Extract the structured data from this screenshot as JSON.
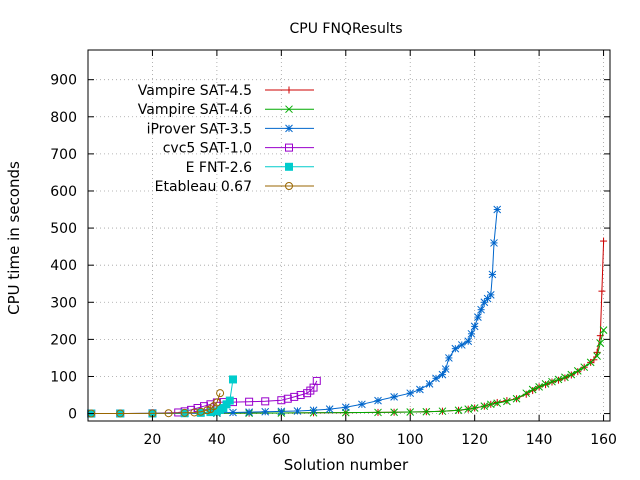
{
  "chart_data": {
    "type": "line",
    "title": "CPU FNQResults",
    "xlabel": "Solution number",
    "ylabel": "CPU time in seconds",
    "xlim": [
      0,
      162
    ],
    "ylim": [
      -20,
      980
    ],
    "xticks": [
      20,
      40,
      60,
      80,
      100,
      120,
      140,
      160
    ],
    "yticks": [
      0,
      100,
      200,
      300,
      400,
      500,
      600,
      700,
      800,
      900
    ],
    "grid": true,
    "legend_position": "top-left",
    "series": [
      {
        "name": "Vampire SAT-4.5",
        "color": "#cc0000",
        "marker": "plus",
        "points": [
          [
            1,
            0.1
          ],
          [
            10,
            0.2
          ],
          [
            20,
            0.3
          ],
          [
            30,
            0.5
          ],
          [
            40,
            0.8
          ],
          [
            50,
            1.2
          ],
          [
            60,
            1.6
          ],
          [
            70,
            2.1
          ],
          [
            80,
            2.6
          ],
          [
            90,
            3.1
          ],
          [
            95,
            3.6
          ],
          [
            100,
            4.2
          ],
          [
            105,
            5
          ],
          [
            110,
            6.5
          ],
          [
            115,
            9
          ],
          [
            118,
            12
          ],
          [
            120,
            15
          ],
          [
            123,
            20
          ],
          [
            125,
            25
          ],
          [
            127,
            30
          ],
          [
            130,
            35
          ],
          [
            133,
            40
          ],
          [
            136,
            52
          ],
          [
            138,
            62
          ],
          [
            140,
            72
          ],
          [
            142,
            78
          ],
          [
            144,
            85
          ],
          [
            146,
            90
          ],
          [
            148,
            96
          ],
          [
            150,
            104
          ],
          [
            152,
            113
          ],
          [
            154,
            125
          ],
          [
            156,
            138
          ],
          [
            157,
            145
          ],
          [
            158,
            165
          ],
          [
            159,
            210
          ],
          [
            159.5,
            330
          ],
          [
            160,
            465
          ]
        ]
      },
      {
        "name": "Vampire SAT-4.6",
        "color": "#00aa00",
        "marker": "cross",
        "points": [
          [
            1,
            0.1
          ],
          [
            10,
            0.2
          ],
          [
            20,
            0.3
          ],
          [
            30,
            0.5
          ],
          [
            40,
            0.8
          ],
          [
            50,
            1.2
          ],
          [
            60,
            1.6
          ],
          [
            70,
            2.1
          ],
          [
            80,
            2.6
          ],
          [
            90,
            3.1
          ],
          [
            95,
            3.6
          ],
          [
            100,
            4.2
          ],
          [
            105,
            5
          ],
          [
            110,
            6.5
          ],
          [
            115,
            9
          ],
          [
            118,
            12
          ],
          [
            120,
            15
          ],
          [
            123,
            20
          ],
          [
            125,
            25
          ],
          [
            127,
            28
          ],
          [
            130,
            33
          ],
          [
            133,
            40
          ],
          [
            136,
            55
          ],
          [
            138,
            65
          ],
          [
            140,
            72
          ],
          [
            142,
            80
          ],
          [
            144,
            86
          ],
          [
            146,
            92
          ],
          [
            148,
            98
          ],
          [
            150,
            105
          ],
          [
            152,
            115
          ],
          [
            154,
            125
          ],
          [
            156,
            138
          ],
          [
            158,
            155
          ],
          [
            159,
            190
          ],
          [
            160,
            225
          ]
        ]
      },
      {
        "name": "iProver SAT-3.5",
        "color": "#0066cc",
        "marker": "star",
        "points": [
          [
            1,
            0.1
          ],
          [
            10,
            0.3
          ],
          [
            20,
            0.5
          ],
          [
            30,
            1
          ],
          [
            40,
            2
          ],
          [
            45,
            3
          ],
          [
            50,
            4
          ],
          [
            55,
            5
          ],
          [
            60,
            6
          ],
          [
            65,
            7
          ],
          [
            70,
            9
          ],
          [
            75,
            12
          ],
          [
            80,
            17
          ],
          [
            85,
            25
          ],
          [
            90,
            35
          ],
          [
            95,
            45
          ],
          [
            100,
            55
          ],
          [
            103,
            65
          ],
          [
            106,
            80
          ],
          [
            108,
            95
          ],
          [
            110,
            105
          ],
          [
            111,
            120
          ],
          [
            112,
            150
          ],
          [
            114,
            175
          ],
          [
            116,
            185
          ],
          [
            118,
            195
          ],
          [
            119,
            215
          ],
          [
            120,
            235
          ],
          [
            121,
            260
          ],
          [
            122,
            280
          ],
          [
            123,
            300
          ],
          [
            124,
            310
          ],
          [
            125,
            320
          ],
          [
            125.5,
            375
          ],
          [
            126,
            460
          ],
          [
            127,
            550
          ]
        ]
      },
      {
        "name": "cvc5 SAT-1.0",
        "color": "#9900cc",
        "marker": "square",
        "points": [
          [
            1,
            0.1
          ],
          [
            10,
            0.3
          ],
          [
            20,
            0.8
          ],
          [
            28,
            3
          ],
          [
            30,
            6
          ],
          [
            32,
            10
          ],
          [
            34,
            15
          ],
          [
            36,
            20
          ],
          [
            38,
            25
          ],
          [
            40,
            30
          ],
          [
            42,
            31
          ],
          [
            45,
            31
          ],
          [
            50,
            32
          ],
          [
            55,
            33
          ],
          [
            60,
            36
          ],
          [
            62,
            40
          ],
          [
            64,
            45
          ],
          [
            66,
            50
          ],
          [
            68,
            55
          ],
          [
            69,
            62
          ],
          [
            70,
            70
          ],
          [
            71,
            88
          ]
        ]
      },
      {
        "name": "E FNT-2.6",
        "color": "#00cccc",
        "marker": "filled-square",
        "points": [
          [
            1,
            0.1
          ],
          [
            10,
            0.2
          ],
          [
            20,
            0.4
          ],
          [
            30,
            1
          ],
          [
            35,
            2
          ],
          [
            38,
            4
          ],
          [
            40,
            6
          ],
          [
            41,
            10
          ],
          [
            42,
            15
          ],
          [
            43,
            25
          ],
          [
            44,
            35
          ],
          [
            45,
            92
          ]
        ]
      },
      {
        "name": "Etableau 0.67",
        "color": "#996600",
        "marker": "circle",
        "points": [
          [
            1,
            0.1
          ],
          [
            10,
            0.3
          ],
          [
            20,
            0.6
          ],
          [
            25,
            1
          ],
          [
            30,
            2
          ],
          [
            33,
            3
          ],
          [
            35,
            5
          ],
          [
            37,
            9
          ],
          [
            38,
            12
          ],
          [
            39,
            20
          ],
          [
            40,
            30
          ],
          [
            41,
            55
          ]
        ]
      }
    ]
  }
}
